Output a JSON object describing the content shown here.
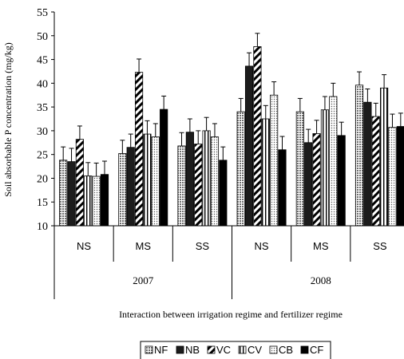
{
  "chart_data": {
    "type": "bar",
    "title": "",
    "xlabel": "Interaction between irrigation regime and fertilizer regime",
    "ylabel": "Soil absorbable P concentration (mg/kg)",
    "ylim": [
      10,
      55
    ],
    "yticks": [
      10,
      15,
      20,
      25,
      30,
      35,
      40,
      45,
      50,
      55
    ],
    "categories": [
      "NS",
      "MS",
      "SS",
      "NS",
      "MS",
      "SS"
    ],
    "groups": [
      {
        "label": "2007",
        "categories": [
          "NS",
          "MS",
          "SS"
        ]
      },
      {
        "label": "2008",
        "categories": [
          "NS",
          "MS",
          "SS"
        ]
      }
    ],
    "legend_position": "bottom",
    "grid": false,
    "series": [
      {
        "name": "NF",
        "pattern": "dots",
        "values": [
          23.8,
          25.2,
          26.8,
          34.0,
          34.0,
          39.6
        ],
        "errors": [
          2.8,
          2.8,
          2.8,
          2.8,
          2.8,
          2.8
        ]
      },
      {
        "name": "NB",
        "pattern": "solid",
        "values": [
          23.5,
          26.5,
          29.7,
          43.6,
          27.5,
          36.0
        ],
        "errors": [
          2.8,
          2.8,
          2.8,
          2.8,
          2.8,
          2.8
        ]
      },
      {
        "name": "VC",
        "pattern": "diagonal",
        "values": [
          28.2,
          42.3,
          27.2,
          47.7,
          29.4,
          33.0
        ],
        "errors": [
          2.8,
          2.8,
          2.8,
          2.8,
          2.8,
          2.8
        ]
      },
      {
        "name": "CV",
        "pattern": "vertical",
        "values": [
          20.5,
          29.3,
          30.0,
          32.5,
          34.4,
          39.0
        ],
        "errors": [
          2.8,
          2.8,
          2.8,
          2.8,
          2.8,
          2.8
        ]
      },
      {
        "name": "CB",
        "pattern": "fine-dots",
        "values": [
          20.4,
          28.7,
          28.7,
          37.5,
          37.2,
          30.7
        ],
        "errors": [
          2.8,
          2.8,
          2.8,
          2.8,
          2.8,
          2.8
        ]
      },
      {
        "name": "CF",
        "pattern": "black",
        "values": [
          20.8,
          34.5,
          23.8,
          26.0,
          29.0,
          30.9
        ],
        "errors": [
          2.8,
          2.8,
          2.8,
          2.8,
          2.8,
          2.8
        ]
      }
    ]
  }
}
